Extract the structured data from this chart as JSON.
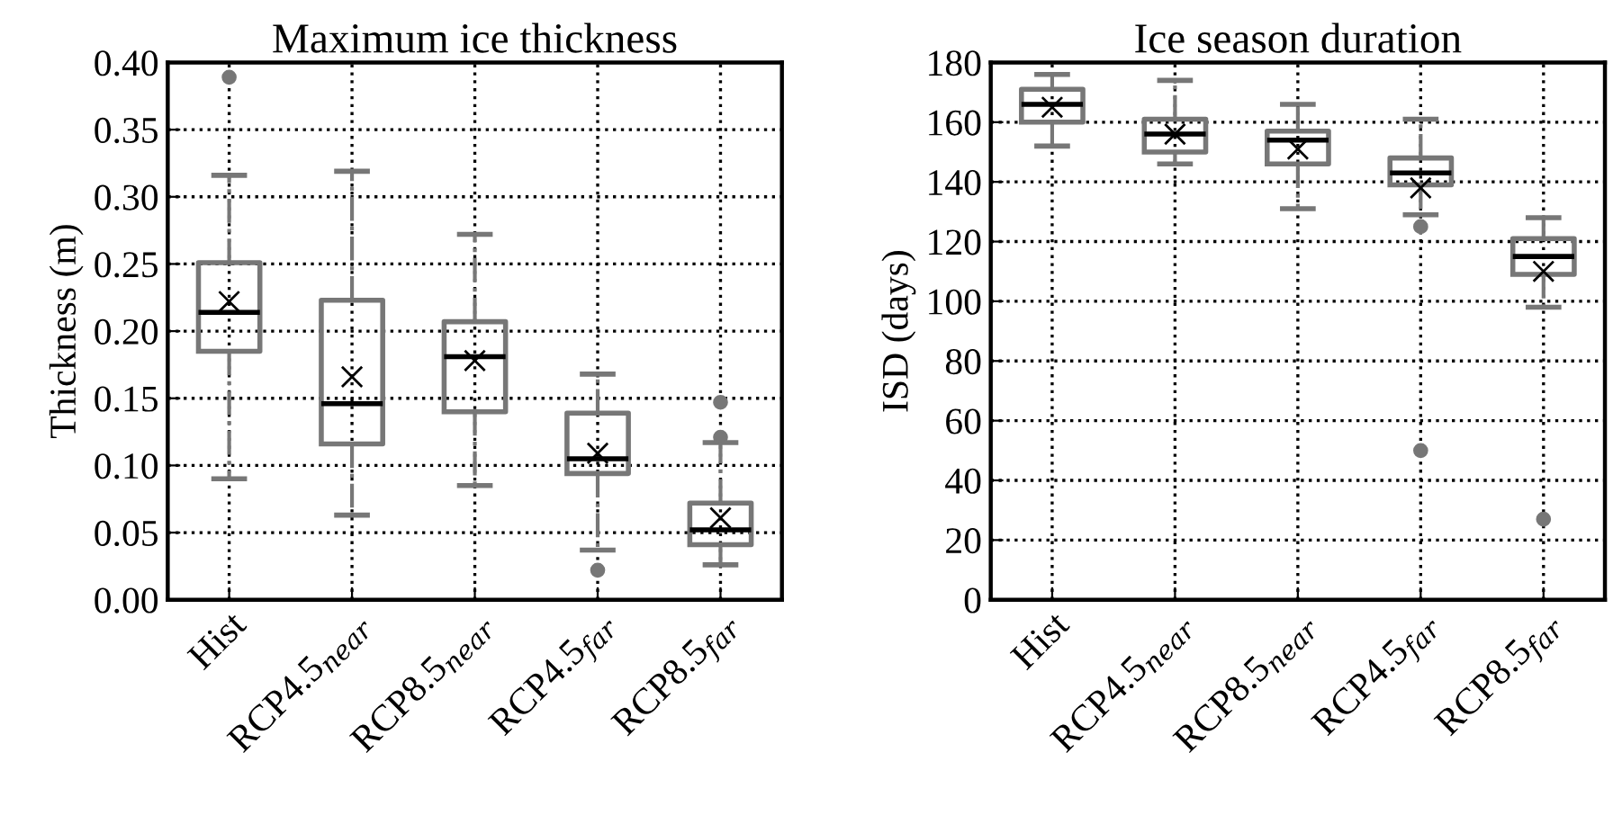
{
  "chart_data": [
    {
      "type": "box",
      "title": "Maximum ice thickness",
      "ylabel": "Thickness (m)",
      "categories": [
        "Hist",
        "RCP4.5$_{near}$",
        "RCP8.5$_{near}$",
        "RCP4.5$_{far}$",
        "RCP8.5$_{far}$"
      ],
      "ylim": [
        0,
        0.4
      ],
      "yticks": [
        {
          "value": 0,
          "label": "0.00"
        },
        {
          "value": 0.05,
          "label": "0.05"
        },
        {
          "value": 0.1,
          "label": "0.10"
        },
        {
          "value": 0.15,
          "label": "0.15"
        },
        {
          "value": 0.2,
          "label": "0.20"
        },
        {
          "value": 0.25,
          "label": "0.25"
        },
        {
          "value": 0.3,
          "label": "0.30"
        },
        {
          "value": 0.35,
          "label": "0.35"
        },
        {
          "value": 0.4,
          "label": "0.40"
        }
      ],
      "grid": true,
      "color": "#777777",
      "boxes": [
        {
          "low": 0.09,
          "q1": 0.185,
          "median": 0.214,
          "q3": 0.251,
          "high": 0.316,
          "mean": 0.222,
          "outliers": [
            0.389
          ]
        },
        {
          "low": 0.063,
          "q1": 0.116,
          "median": 0.146,
          "q3": 0.223,
          "high": 0.319,
          "mean": 0.166
        },
        {
          "low": 0.085,
          "q1": 0.14,
          "median": 0.181,
          "q3": 0.207,
          "high": 0.272,
          "mean": 0.178
        },
        {
          "low": 0.037,
          "q1": 0.094,
          "median": 0.105,
          "q3": 0.139,
          "high": 0.168,
          "mean": 0.109,
          "outliers": [
            0.022
          ]
        },
        {
          "low": 0.026,
          "q1": 0.041,
          "median": 0.052,
          "q3": 0.072,
          "high": 0.117,
          "mean": 0.061,
          "outliers": [
            0.121,
            0.147
          ]
        }
      ]
    },
    {
      "type": "box",
      "title": "Ice season duration",
      "ylabel": "ISD (days)",
      "categories": [
        "Hist",
        "RCP4.5$_{near}$",
        "RCP8.5$_{near}$",
        "RCP4.5$_{far}$",
        "RCP8.5$_{far}$"
      ],
      "ylim": [
        0,
        180
      ],
      "yticks": [
        0,
        20,
        40,
        60,
        80,
        100,
        120,
        140,
        160,
        180
      ],
      "grid": true,
      "color": "#777777",
      "boxes": [
        {
          "low": 152,
          "q1": 160,
          "median": 166,
          "q3": 171,
          "high": 176,
          "mean": 165
        },
        {
          "low": 146,
          "q1": 150,
          "median": 156,
          "q3": 161,
          "high": 174,
          "mean": 156
        },
        {
          "low": 131,
          "q1": 146,
          "median": 154,
          "q3": 157,
          "high": 166,
          "mean": 151
        },
        {
          "low": 129,
          "q1": 139,
          "median": 143,
          "q3": 148,
          "high": 161,
          "mean": 138,
          "outliers": [
            125,
            50
          ]
        },
        {
          "low": 98,
          "q1": 109,
          "median": 115,
          "q3": 121,
          "high": 128,
          "mean": 110,
          "outliers": [
            27
          ]
        }
      ]
    }
  ]
}
